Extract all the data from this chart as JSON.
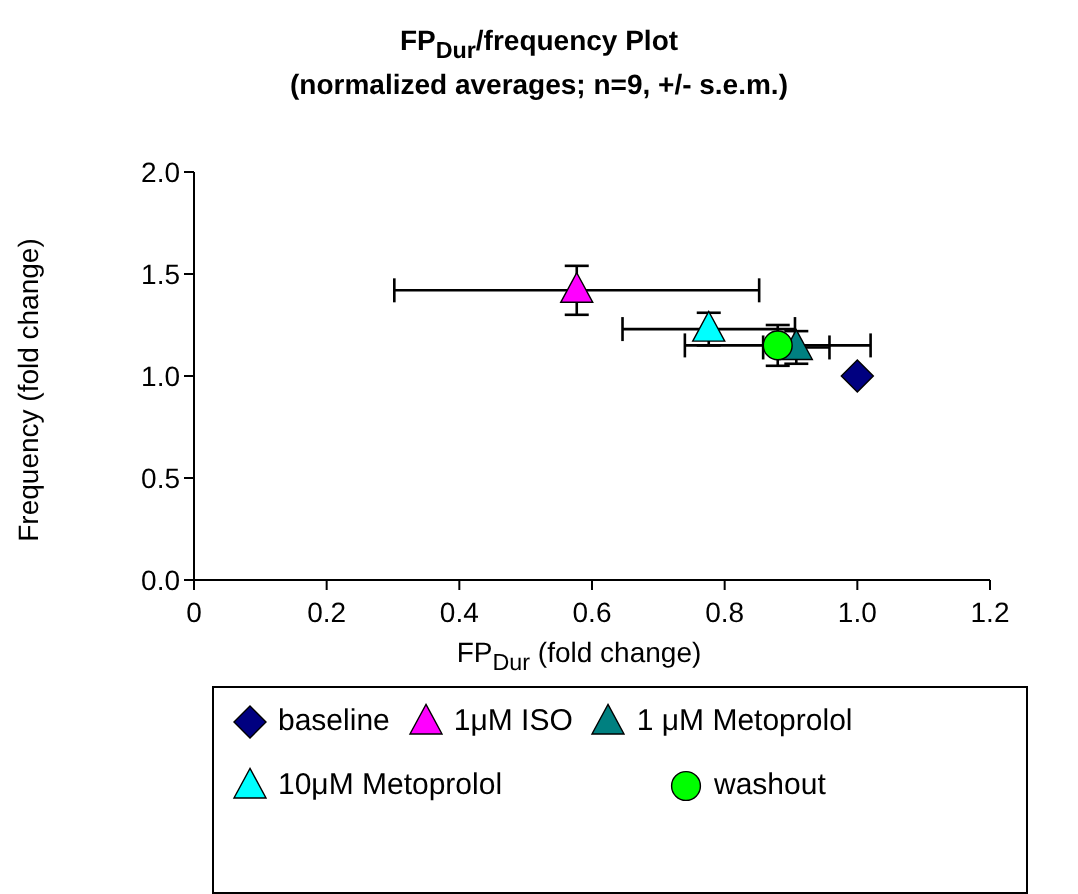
{
  "chart_data": {
    "type": "scatter",
    "title": "FP$_{Dur}$/frequency Plot",
    "subtitle": "(normalized averages; n=9, +/- s.e.m.)",
    "xlabel": "FP$_{Dur}$  (fold change)",
    "ylabel": "Frequency (fold change)",
    "xlim": [
      0,
      1.2
    ],
    "xticks": [
      0,
      0.2,
      0.4,
      0.6,
      0.8,
      {
        "value": 1,
        "label": "1.0"
      },
      1.2
    ],
    "ylim": [
      0,
      2
    ],
    "yticks": [
      {
        "value": 0,
        "label": "0.0"
      },
      0.5,
      {
        "value": 1,
        "label": "1.0"
      },
      1.5,
      {
        "value": 2,
        "label": "2.0"
      }
    ],
    "grid": false,
    "legend": "bottom",
    "series": [
      {
        "name": "baseline",
        "color": "#000080",
        "marker": "diamond",
        "x": [
          1.0
        ],
        "values": [
          1.0
        ]
      },
      {
        "name": "1μM ISO",
        "color": "#ff00ff",
        "marker": "triangle",
        "x": [
          0.577
        ],
        "values": [
          1.42
        ],
        "errors": [
          0.12
        ],
        "xerrors": [
          0.275
        ]
      },
      {
        "name": "1 μM Metoprolol",
        "color": "#008080",
        "marker": "triangle",
        "x": [
          0.908
        ],
        "values": [
          1.14
        ],
        "errors": [
          0.08
        ],
        "xerrors": [
          0.05
        ]
      },
      {
        "name": "10μM Metoprolol",
        "color": "#00ffff",
        "marker": "triangle",
        "x": [
          0.776
        ],
        "values": [
          1.23
        ],
        "errors": [
          0.08
        ],
        "xerrors": [
          0.13
        ]
      },
      {
        "name": "washout",
        "color": "#00ff00",
        "marker": "circle",
        "x": [
          0.88
        ],
        "values": [
          1.15
        ],
        "errors": [
          0.1
        ],
        "xerrors": [
          0.14
        ]
      }
    ]
  }
}
